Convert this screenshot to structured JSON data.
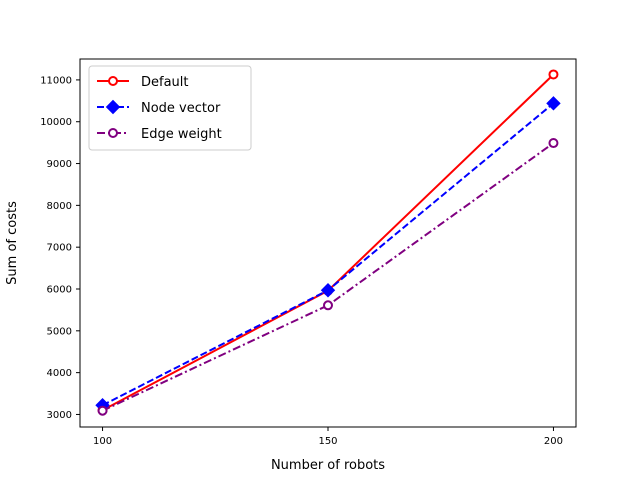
{
  "chart_data": {
    "type": "line",
    "title": "",
    "xlabel": "Number of robots",
    "ylabel": "Sum of costs",
    "x": [
      100,
      150,
      200
    ],
    "x_ticks": [
      100,
      150,
      200
    ],
    "y_ticks": [
      3000,
      4000,
      5000,
      6000,
      7000,
      8000,
      9000,
      10000,
      11000
    ],
    "xlim": [
      95,
      205
    ],
    "ylim": [
      2700,
      11500
    ],
    "grid": false,
    "legend_position": "top-left",
    "series": [
      {
        "name": "Default",
        "values": [
          3100,
          5960,
          11130
        ],
        "color": "#ff0000",
        "line_style": "solid",
        "marker": "open-circle"
      },
      {
        "name": "Node vector",
        "values": [
          3220,
          5970,
          10440
        ],
        "color": "#0000ff",
        "line_style": "dashed",
        "marker": "filled-diamond"
      },
      {
        "name": "Edge weight",
        "values": [
          3090,
          5610,
          9490
        ],
        "color": "#800080",
        "line_style": "dash-dot",
        "marker": "open-circle"
      }
    ]
  }
}
